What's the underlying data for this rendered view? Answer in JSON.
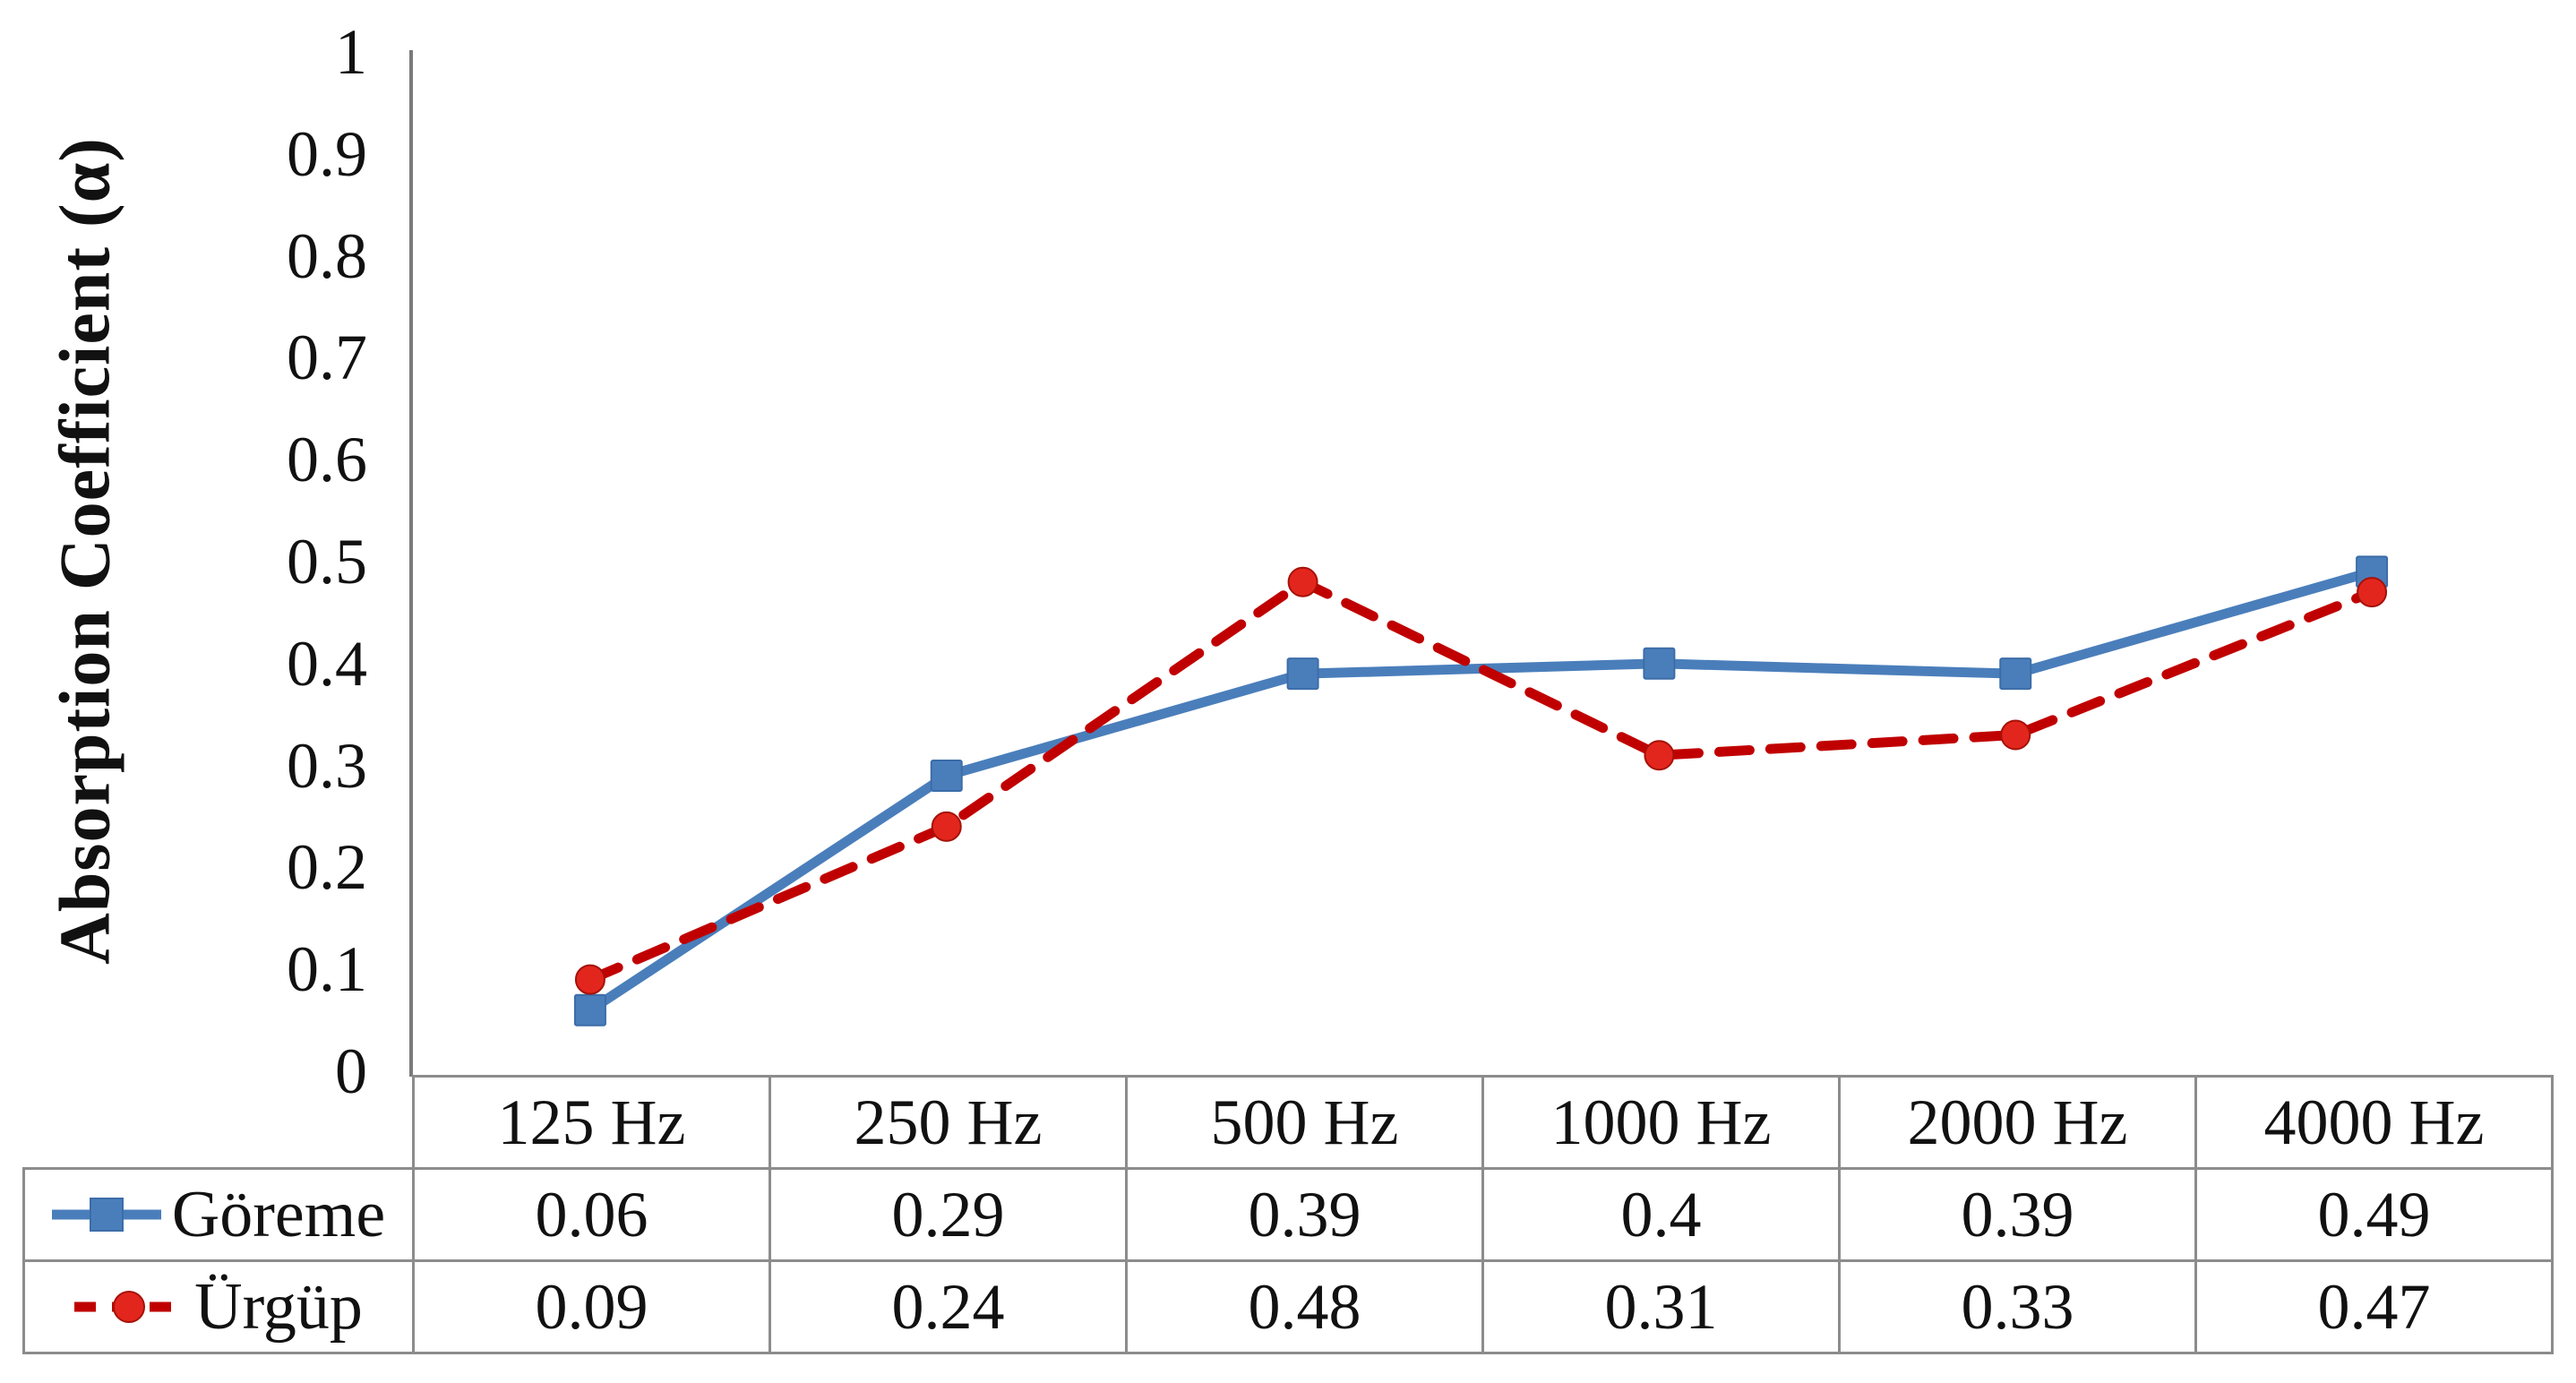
{
  "chart_data": {
    "type": "line",
    "title": "",
    "ylabel": "Absorption Coefficient (α)",
    "xlabel": "",
    "categories": [
      "125 Hz",
      "250 Hz",
      "500 Hz",
      "1000 Hz",
      "2000 Hz",
      "4000 Hz"
    ],
    "series": [
      {
        "name": "Göreme",
        "values": [
          0.06,
          0.29,
          0.39,
          0.4,
          0.39,
          0.49
        ],
        "display_values": [
          "0.06",
          "0.29",
          "0.39",
          "0.4",
          "0.39",
          "0.49"
        ],
        "color": "#4a7ebb",
        "marker_color": "#4a7ebb",
        "marker_edge": "#3c6da8",
        "marker": "square",
        "line_style": "solid"
      },
      {
        "name": "Ürgüp",
        "values": [
          0.09,
          0.24,
          0.48,
          0.31,
          0.33,
          0.47
        ],
        "display_values": [
          "0.09",
          "0.24",
          "0.48",
          "0.31",
          "0.33",
          "0.47"
        ],
        "color": "#c00000",
        "marker_color": "#e3261d",
        "marker_edge": "#a51208",
        "marker": "circle",
        "line_style": "dashed"
      }
    ],
    "ylim": [
      0,
      1
    ],
    "yticks": [
      "0",
      "0.1",
      "0.2",
      "0.3",
      "0.4",
      "0.5",
      "0.6",
      "0.7",
      "0.8",
      "0.9",
      "1"
    ],
    "grid": false,
    "legend_position": "table-left",
    "colors": {
      "axis": "#7a7a7a",
      "table_border": "#8c8c8c",
      "text": "#111111",
      "background": "#ffffff"
    }
  }
}
